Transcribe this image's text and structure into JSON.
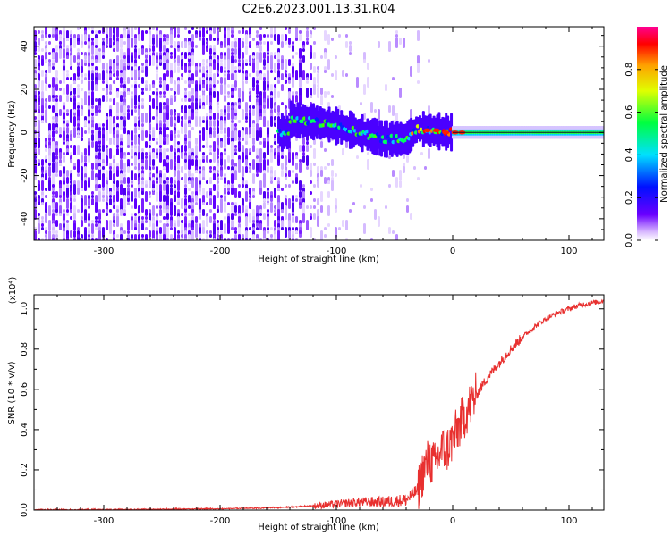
{
  "page_title": "C2E6.2023.001.13.31.R04",
  "chart_data": [
    {
      "type": "heatmap",
      "xlabel": "Height of straight line (km)",
      "ylabel": "Frequency (Hz)",
      "xlim": [
        -360,
        130
      ],
      "ylim": [
        -50,
        49
      ],
      "xticks": [
        -300,
        -200,
        -100,
        0,
        100
      ],
      "yticks": [
        -40,
        -20,
        0,
        20,
        40
      ],
      "colorbar": {
        "label": "Normalized spectral amplitude",
        "range": [
          0,
          1
        ],
        "ticks": [
          "0.0",
          "0.2",
          "0.4",
          "0.6",
          "0.8"
        ],
        "colormap": "rainbow (white → violet → blue → cyan → green → yellow → red → magenta)"
      },
      "signal_track": {
        "description": "Carrier line near 0 Hz, strong for height > -100 km",
        "points": [
          [
            -140,
            6
          ],
          [
            -120,
            5
          ],
          [
            -100,
            3
          ],
          [
            -80,
            0
          ],
          [
            -60,
            -3
          ],
          [
            -40,
            -3
          ],
          [
            -30,
            2
          ],
          [
            -20,
            1
          ],
          [
            0,
            0
          ],
          [
            130,
            0
          ]
        ]
      }
    },
    {
      "type": "line",
      "xlabel": "Height of straight line (km)",
      "ylabel": "SNR (10 * v/v)",
      "scale_note": "(x10⁴)",
      "xlim": [
        -360,
        130
      ],
      "ylim": [
        0,
        1.07
      ],
      "xticks": [
        -300,
        -200,
        -100,
        0,
        100
      ],
      "yticks": [
        "0.0",
        "0.2",
        "0.4",
        "0.6",
        "0.8",
        "1.0"
      ],
      "series": [
        {
          "color": "#e8302f",
          "x": [
            -360,
            -300,
            -200,
            -150,
            -120,
            -100,
            -80,
            -60,
            -40,
            -30,
            -25,
            -20,
            -15,
            -10,
            -5,
            0,
            10,
            20,
            30,
            40,
            50,
            60,
            70,
            80,
            90,
            100,
            110,
            120,
            130
          ],
          "y": [
            0.0,
            0.0,
            0.005,
            0.01,
            0.02,
            0.03,
            0.04,
            0.04,
            0.05,
            0.1,
            0.2,
            0.25,
            0.22,
            0.3,
            0.3,
            0.35,
            0.47,
            0.57,
            0.66,
            0.73,
            0.8,
            0.86,
            0.91,
            0.95,
            0.98,
            1.0,
            1.02,
            1.03,
            1.04
          ]
        }
      ]
    }
  ]
}
